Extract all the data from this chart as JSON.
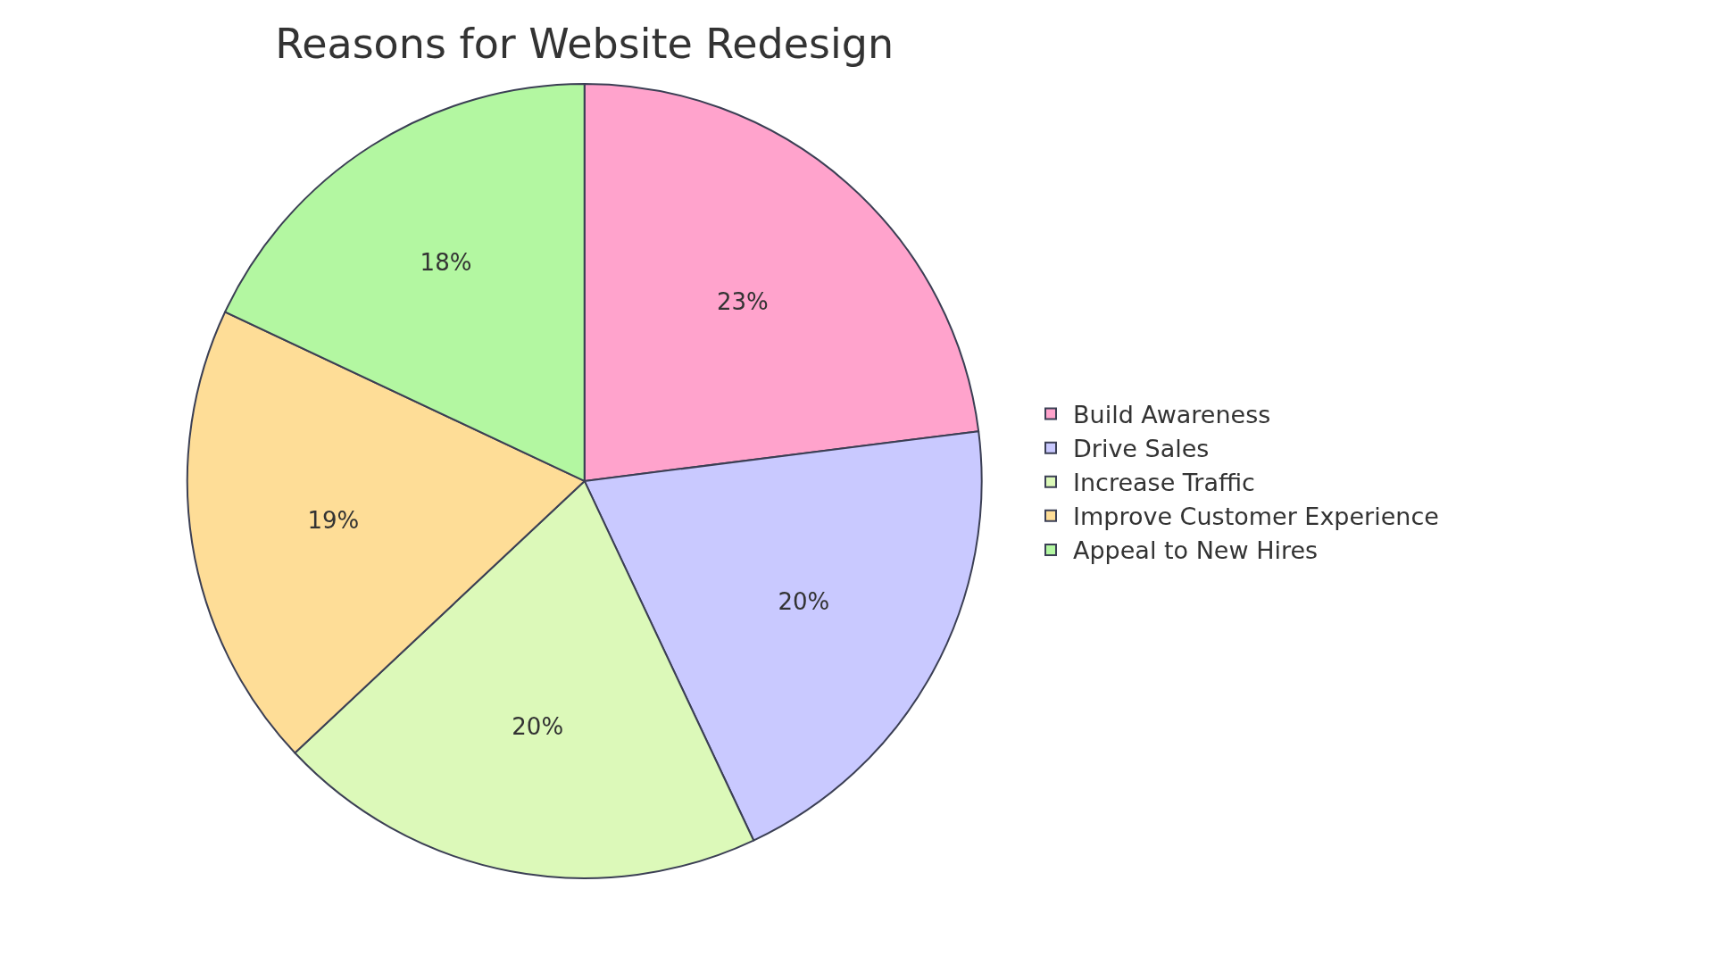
{
  "chart_data": {
    "type": "pie",
    "title": "Reasons for Website Redesign",
    "categories": [
      "Build Awareness",
      "Drive Sales",
      "Increase Traffic",
      "Improve Customer Experience",
      "Appeal to New Hires"
    ],
    "values": [
      23,
      20,
      20,
      19,
      18
    ],
    "value_labels": [
      "23%",
      "20%",
      "20%",
      "19%",
      "18%"
    ],
    "colors": [
      "#ffa3cc",
      "#c9c9ff",
      "#dcf9b9",
      "#fedd97",
      "#b3f7a1"
    ],
    "legend": "right"
  }
}
